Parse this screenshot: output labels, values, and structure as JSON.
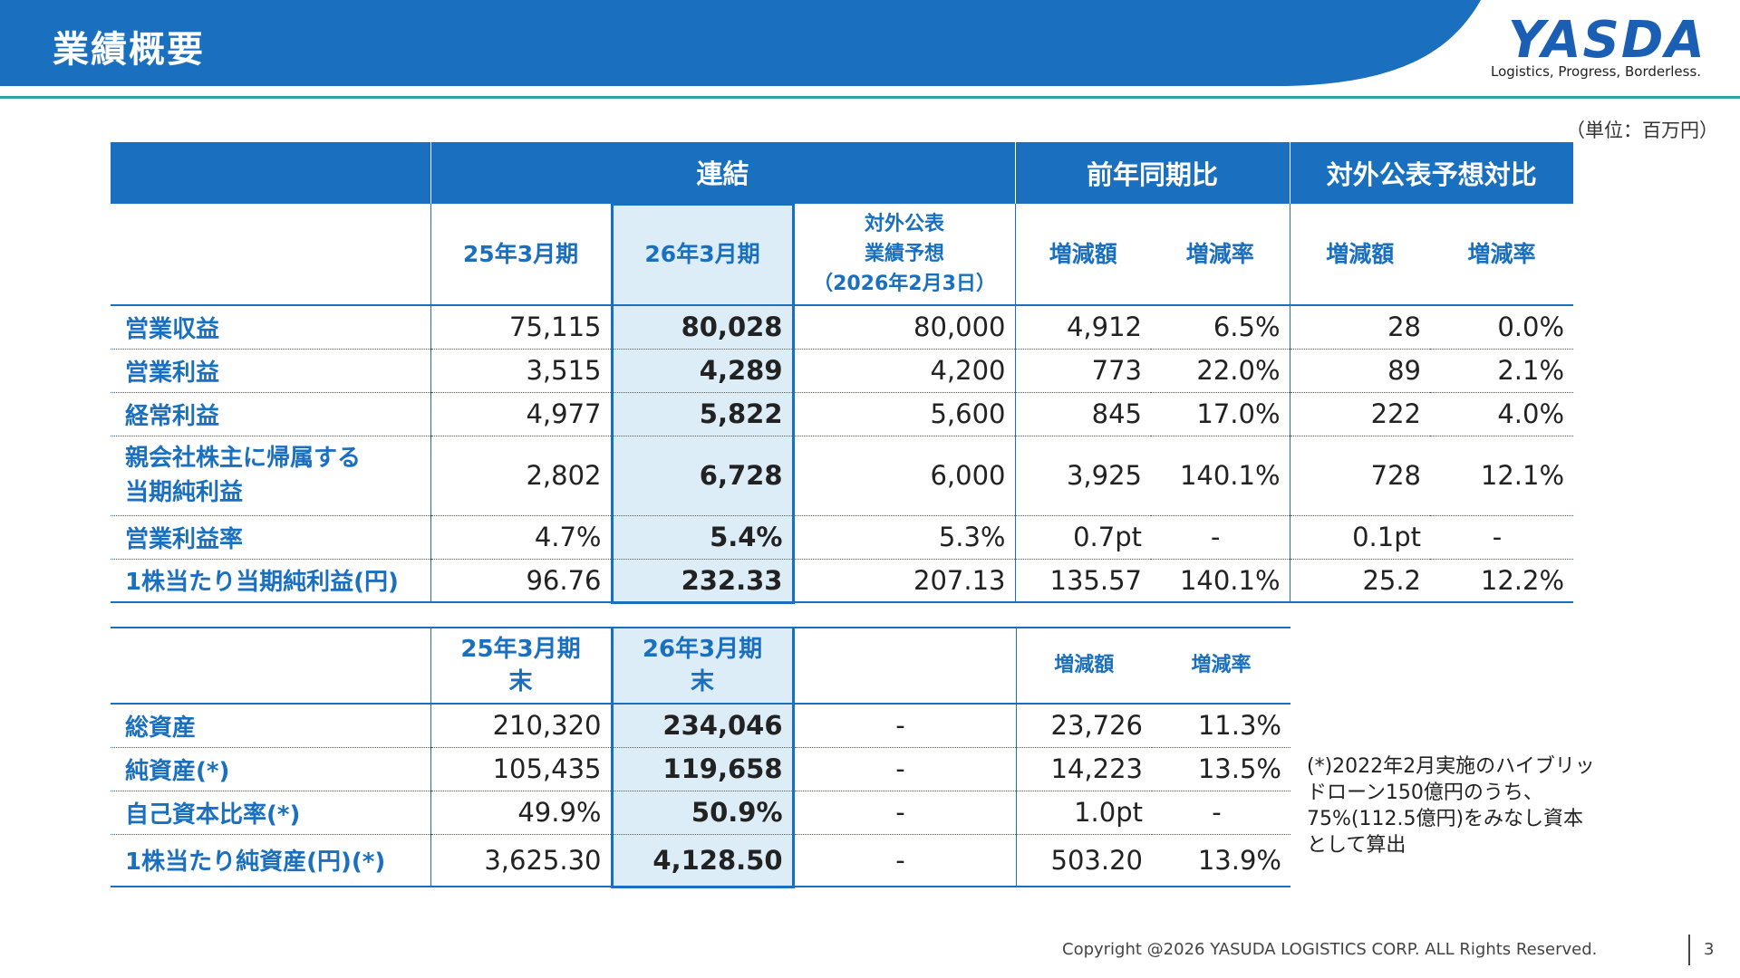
{
  "header": {
    "title": "業績概要",
    "logo_text": "YASDA",
    "tagline": "Logistics, Progress, Borderless.",
    "accent_color": "#1a6fbf"
  },
  "unit_note": "（単位：百万円）",
  "main_table": {
    "group_headers": [
      "連結",
      "前年同期比",
      "対外公表予想対比"
    ],
    "col_headers": {
      "fy25": "25年3月期",
      "fy26": "26年3月期",
      "forecast_l1": "対外公表",
      "forecast_l2": "業績予想",
      "forecast_l3": "（2026年2月3日）",
      "yoy_diff": "増減額",
      "yoy_rate": "増減率",
      "fc_diff": "増減額",
      "fc_rate": "増減率"
    },
    "rows": [
      {
        "label_l1": "営業収益",
        "label_l2": "",
        "fy25": "75,115",
        "fy26": "80,028",
        "forecast": "80,000",
        "yoy_diff": "4,912",
        "yoy_rate": "6.5%",
        "fc_diff": "28",
        "fc_rate": "0.0%"
      },
      {
        "label_l1": "営業利益",
        "label_l2": "",
        "fy25": "3,515",
        "fy26": "4,289",
        "forecast": "4,200",
        "yoy_diff": "773",
        "yoy_rate": "22.0%",
        "fc_diff": "89",
        "fc_rate": "2.1%"
      },
      {
        "label_l1": "経常利益",
        "label_l2": "",
        "fy25": "4,977",
        "fy26": "5,822",
        "forecast": "5,600",
        "yoy_diff": "845",
        "yoy_rate": "17.0%",
        "fc_diff": "222",
        "fc_rate": "4.0%"
      },
      {
        "label_l1": "親会社株主に帰属する",
        "label_l2": "当期純利益",
        "fy25": "2,802",
        "fy26": "6,728",
        "forecast": "6,000",
        "yoy_diff": "3,925",
        "yoy_rate": "140.1%",
        "fc_diff": "728",
        "fc_rate": "12.1%"
      },
      {
        "label_l1": "営業利益率",
        "label_l2": "",
        "fy25": "4.7%",
        "fy26": "5.4%",
        "forecast": "5.3%",
        "yoy_diff": "0.7pt",
        "yoy_rate": "-",
        "fc_diff": "0.1pt",
        "fc_rate": "-"
      },
      {
        "label_l1": "1株当たり当期純利益(円)",
        "label_l2": "",
        "fy25": "96.76",
        "fy26": "232.33",
        "forecast": "207.13",
        "yoy_diff": "135.57",
        "yoy_rate": "140.1%",
        "fc_diff": "25.2",
        "fc_rate": "12.2%"
      }
    ]
  },
  "bs_table": {
    "col_headers": {
      "fy25_l1": "25年3月期",
      "fy25_l2": "末",
      "fy26_l1": "26年3月期",
      "fy26_l2": "末",
      "diff": "増減額",
      "rate": "増減率"
    },
    "rows": [
      {
        "label": "総資産",
        "fy25": "210,320",
        "fy26": "234,046",
        "forecast": "-",
        "diff": "23,726",
        "rate": "11.3%"
      },
      {
        "label": "純資産(*)",
        "fy25": "105,435",
        "fy26": "119,658",
        "forecast": "-",
        "diff": "14,223",
        "rate": "13.5%"
      },
      {
        "label": "自己資本比率(*)",
        "fy25": "49.9%",
        "fy26": "50.9%",
        "forecast": "-",
        "diff": "1.0pt",
        "rate": "-"
      },
      {
        "label": "1株当たり純資産(円)(*)",
        "fy25": "3,625.30",
        "fy26": "4,128.50",
        "forecast": "-",
        "diff": "503.20",
        "rate": "13.9%"
      }
    ]
  },
  "footnote": {
    "l1": "(*)2022年2月実施のハイブリッ",
    "l2": "ドローン150億円のうち、",
    "l3": "75%(112.5億円)をみなし資本",
    "l4": "として算出"
  },
  "footer": {
    "copyright": "Copyright @2026 YASUDA LOGISTICS CORP.   ALL Rights Reserved.",
    "page": "3"
  }
}
